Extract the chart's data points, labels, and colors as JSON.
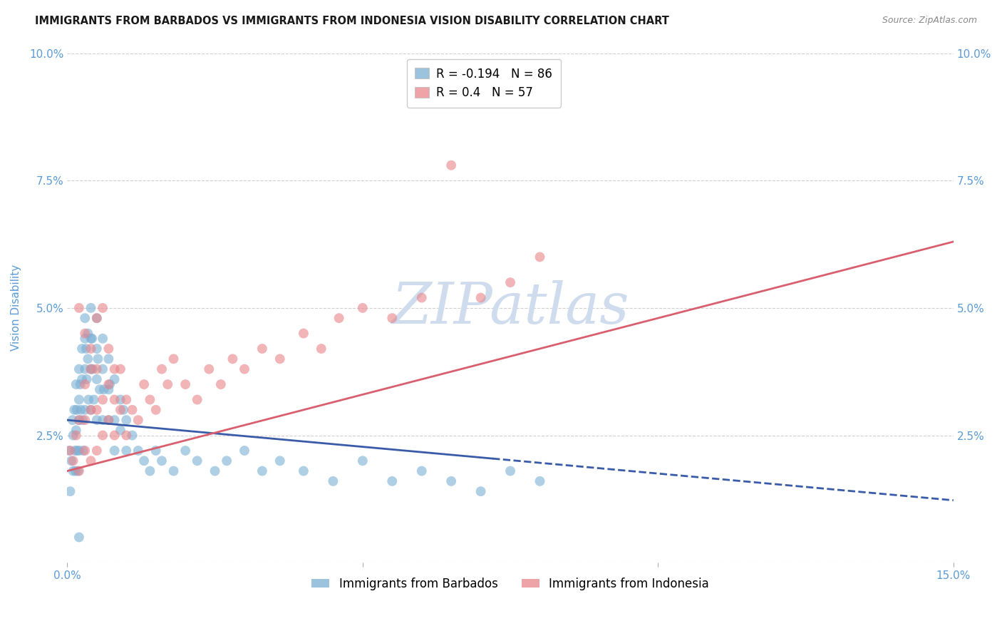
{
  "title": "IMMIGRANTS FROM BARBADOS VS IMMIGRANTS FROM INDONESIA VISION DISABILITY CORRELATION CHART",
  "source": "Source: ZipAtlas.com",
  "ylabel": "Vision Disability",
  "xlim": [
    0.0,
    0.15
  ],
  "ylim": [
    0.0,
    0.1
  ],
  "yticks": [
    0.0,
    0.025,
    0.05,
    0.075,
    0.1
  ],
  "ytick_labels_left": [
    "",
    "2.5%",
    "5.0%",
    "7.5%",
    "10.0%"
  ],
  "ytick_labels_right": [
    "",
    "2.5%",
    "5.0%",
    "7.5%",
    "10.0%"
  ],
  "xticks": [
    0.0,
    0.05,
    0.1,
    0.15
  ],
  "xtick_labels": [
    "0.0%",
    "",
    "",
    "15.0%"
  ],
  "barbados_color": "#7bafd4",
  "indonesia_color": "#e8858a",
  "barbados_alpha": 0.6,
  "indonesia_alpha": 0.6,
  "dot_size": 100,
  "barbados_R": -0.194,
  "barbados_N": 86,
  "indonesia_R": 0.4,
  "indonesia_N": 57,
  "trendline_blue_color": "#3a5ca8",
  "trendline_pink_color": "#d95f6e",
  "trendline_blue_intercept": 0.028,
  "trendline_blue_slope": -0.105,
  "trendline_blue_solid_end": 0.072,
  "trendline_pink_intercept": 0.018,
  "trendline_pink_slope": 0.3,
  "watermark": "ZIPatlas",
  "watermark_color": "#cfdcee",
  "title_fontsize": 10.5,
  "source_fontsize": 9,
  "axis_label_color": "#5b9bd5",
  "tick_color": "#5b9bd5",
  "grid_color": "#d0d0d0",
  "barbados_x": [
    0.0003,
    0.0005,
    0.0007,
    0.0009,
    0.001,
    0.001,
    0.0012,
    0.0013,
    0.0014,
    0.0015,
    0.0015,
    0.0016,
    0.0017,
    0.0018,
    0.002,
    0.002,
    0.002,
    0.002,
    0.0022,
    0.0023,
    0.0025,
    0.0025,
    0.0026,
    0.0027,
    0.003,
    0.003,
    0.003,
    0.003,
    0.0032,
    0.0033,
    0.0035,
    0.0035,
    0.0036,
    0.004,
    0.004,
    0.004,
    0.004,
    0.0042,
    0.0043,
    0.0045,
    0.005,
    0.005,
    0.005,
    0.005,
    0.0052,
    0.0055,
    0.006,
    0.006,
    0.006,
    0.0062,
    0.007,
    0.007,
    0.007,
    0.0072,
    0.008,
    0.008,
    0.008,
    0.009,
    0.009,
    0.0095,
    0.01,
    0.01,
    0.011,
    0.012,
    0.013,
    0.014,
    0.015,
    0.016,
    0.018,
    0.02,
    0.022,
    0.025,
    0.027,
    0.03,
    0.033,
    0.036,
    0.04,
    0.045,
    0.05,
    0.055,
    0.06,
    0.065,
    0.07,
    0.075,
    0.08,
    0.002
  ],
  "barbados_y": [
    0.022,
    0.014,
    0.02,
    0.028,
    0.025,
    0.018,
    0.03,
    0.022,
    0.018,
    0.035,
    0.026,
    0.03,
    0.022,
    0.018,
    0.038,
    0.032,
    0.028,
    0.022,
    0.035,
    0.03,
    0.042,
    0.036,
    0.028,
    0.022,
    0.048,
    0.044,
    0.038,
    0.03,
    0.042,
    0.036,
    0.045,
    0.04,
    0.032,
    0.05,
    0.044,
    0.038,
    0.03,
    0.044,
    0.038,
    0.032,
    0.048,
    0.042,
    0.036,
    0.028,
    0.04,
    0.034,
    0.044,
    0.038,
    0.028,
    0.034,
    0.04,
    0.034,
    0.028,
    0.035,
    0.036,
    0.028,
    0.022,
    0.032,
    0.026,
    0.03,
    0.028,
    0.022,
    0.025,
    0.022,
    0.02,
    0.018,
    0.022,
    0.02,
    0.018,
    0.022,
    0.02,
    0.018,
    0.02,
    0.022,
    0.018,
    0.02,
    0.018,
    0.016,
    0.02,
    0.016,
    0.018,
    0.016,
    0.014,
    0.018,
    0.016,
    0.005
  ],
  "indonesia_x": [
    0.0005,
    0.001,
    0.0015,
    0.002,
    0.002,
    0.003,
    0.003,
    0.003,
    0.004,
    0.004,
    0.004,
    0.005,
    0.005,
    0.005,
    0.006,
    0.006,
    0.007,
    0.007,
    0.008,
    0.008,
    0.009,
    0.009,
    0.01,
    0.01,
    0.011,
    0.012,
    0.013,
    0.014,
    0.015,
    0.016,
    0.017,
    0.018,
    0.02,
    0.022,
    0.024,
    0.026,
    0.028,
    0.03,
    0.033,
    0.036,
    0.04,
    0.043,
    0.046,
    0.05,
    0.055,
    0.06,
    0.065,
    0.07,
    0.075,
    0.08,
    0.002,
    0.003,
    0.004,
    0.005,
    0.006,
    0.007,
    0.008
  ],
  "indonesia_y": [
    0.022,
    0.02,
    0.025,
    0.018,
    0.028,
    0.022,
    0.028,
    0.035,
    0.02,
    0.03,
    0.038,
    0.022,
    0.03,
    0.038,
    0.025,
    0.032,
    0.028,
    0.035,
    0.025,
    0.032,
    0.03,
    0.038,
    0.025,
    0.032,
    0.03,
    0.028,
    0.035,
    0.032,
    0.03,
    0.038,
    0.035,
    0.04,
    0.035,
    0.032,
    0.038,
    0.035,
    0.04,
    0.038,
    0.042,
    0.04,
    0.045,
    0.042,
    0.048,
    0.05,
    0.048,
    0.052,
    0.078,
    0.052,
    0.055,
    0.06,
    0.05,
    0.045,
    0.042,
    0.048,
    0.05,
    0.042,
    0.038
  ]
}
